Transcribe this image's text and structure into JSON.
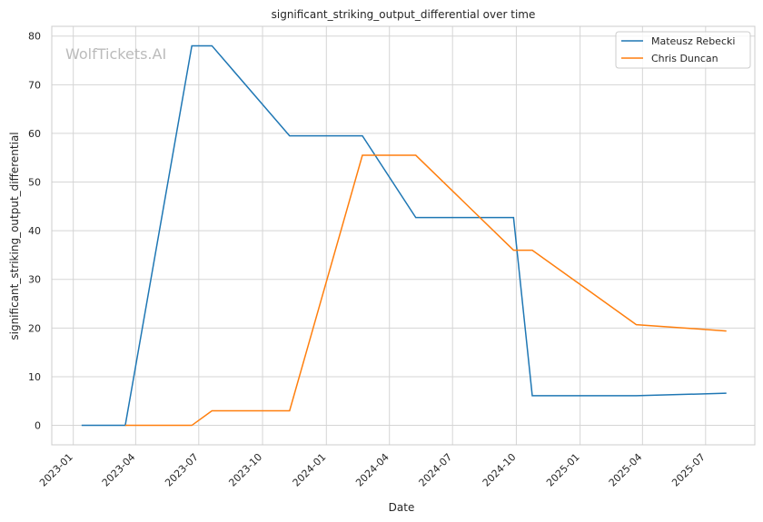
{
  "chart_data": {
    "type": "line",
    "title": "significant_striking_output_differential over time",
    "xlabel": "Date",
    "ylabel": "significant_striking_output_differential",
    "watermark": "WolfTickets.AI",
    "ylim": [
      -4,
      82
    ],
    "xlim": [
      "2022-12-01",
      "2025-09-10"
    ],
    "yticks": [
      0,
      10,
      20,
      30,
      40,
      50,
      60,
      70,
      80
    ],
    "xticks": [
      "2023-01",
      "2023-04",
      "2023-07",
      "2023-10",
      "2024-01",
      "2024-04",
      "2024-07",
      "2024-10",
      "2025-01",
      "2025-04",
      "2025-07"
    ],
    "grid": true,
    "legend_position": "top-right",
    "series": [
      {
        "name": "Mateusz Rebecki",
        "color": "#1f77b4",
        "x": [
          "2023-01-13",
          "2023-03-17",
          "2023-06-21",
          "2023-07-20",
          "2023-11-09",
          "2024-02-22",
          "2024-05-09",
          "2024-09-27",
          "2024-10-24",
          "2025-03-23",
          "2025-07-31"
        ],
        "y": [
          0,
          0,
          78,
          78,
          59.5,
          59.5,
          42.7,
          42.7,
          6.1,
          6.1,
          6.6
        ]
      },
      {
        "name": "Chris Duncan",
        "color": "#ff7f0e",
        "x": [
          "2023-03-17",
          "2023-06-21",
          "2023-07-20",
          "2023-11-09",
          "2024-02-22",
          "2024-05-09",
          "2024-09-27",
          "2024-10-24",
          "2025-03-23",
          "2025-07-31"
        ],
        "y": [
          0,
          0,
          3,
          3,
          55.5,
          55.5,
          36,
          36,
          20.7,
          19.4
        ]
      }
    ]
  }
}
